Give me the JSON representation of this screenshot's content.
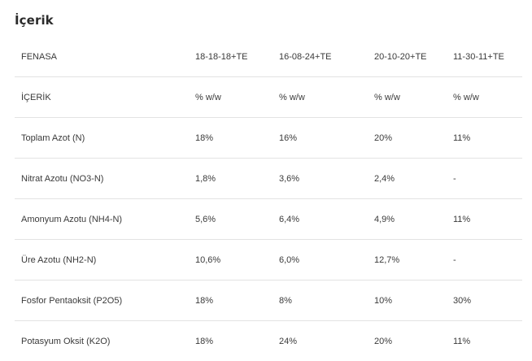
{
  "section": {
    "title": "İçerik"
  },
  "table": {
    "rows": [
      [
        "FENASA",
        "18-18-18+TE",
        "16-08-24+TE",
        "20-10-20+TE",
        "11-30-11+TE"
      ],
      [
        "İÇERİK",
        "% w/w",
        "% w/w",
        "% w/w",
        "% w/w"
      ],
      [
        "Toplam Azot (N)",
        "18%",
        "16%",
        "20%",
        "11%"
      ],
      [
        "Nitrat Azotu (NO3-N)",
        "1,8%",
        "3,6%",
        "2,4%",
        "-"
      ],
      [
        "Amonyum Azotu (NH4-N)",
        "5,6%",
        "6,4%",
        "4,9%",
        "11%"
      ],
      [
        "Üre Azotu (NH2-N)",
        "10,6%",
        "6,0%",
        "12,7%",
        "-"
      ],
      [
        "Fosfor Pentaoksit (P2O5)",
        "18%",
        "8%",
        "10%",
        "30%"
      ],
      [
        "Potasyum Oksit (K2O)",
        "18%",
        "24%",
        "20%",
        "11%"
      ]
    ]
  }
}
